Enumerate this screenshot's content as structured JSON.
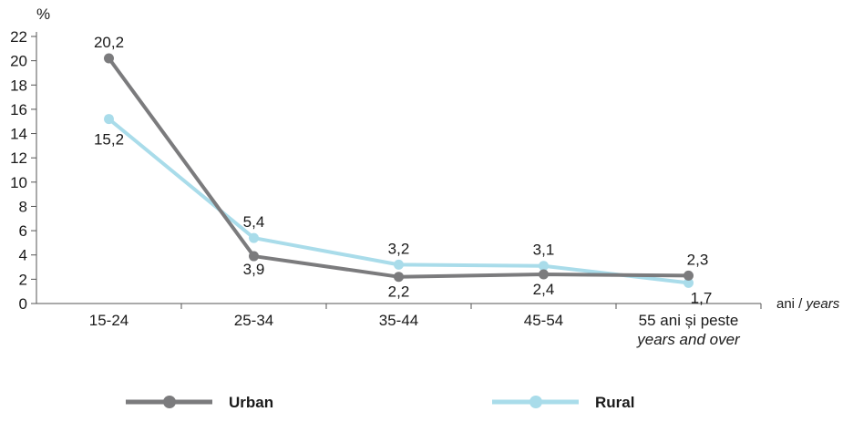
{
  "chart_data": {
    "type": "line",
    "y_unit_label": "%",
    "x_unit_label": {
      "ro": "ani / ",
      "en": "years"
    },
    "categories": [
      {
        "line1": "15-24",
        "line2": ""
      },
      {
        "line1": "25-34",
        "line2": ""
      },
      {
        "line1": "35-44",
        "line2": ""
      },
      {
        "line1": "45-54",
        "line2": ""
      },
      {
        "line1": "55 ani și peste",
        "line2": "years and over"
      }
    ],
    "ylim": [
      0,
      22
    ],
    "yticks": [
      0,
      2,
      4,
      6,
      8,
      10,
      12,
      14,
      16,
      18,
      20,
      22
    ],
    "grid": false,
    "legend_position": "bottom",
    "series": [
      {
        "name": "Urban",
        "color": "#7b7b7d",
        "values": [
          20.2,
          3.9,
          2.2,
          2.4,
          2.3
        ],
        "labels": [
          "20,2",
          "3,9",
          "2,2",
          "2,4",
          "2,3"
        ]
      },
      {
        "name": "Rural",
        "color": "#a9dcea",
        "values": [
          15.2,
          5.4,
          3.2,
          3.1,
          1.7
        ],
        "labels": [
          "15,2",
          "5,4",
          "3,2",
          "3,1",
          "1,7"
        ]
      }
    ]
  }
}
